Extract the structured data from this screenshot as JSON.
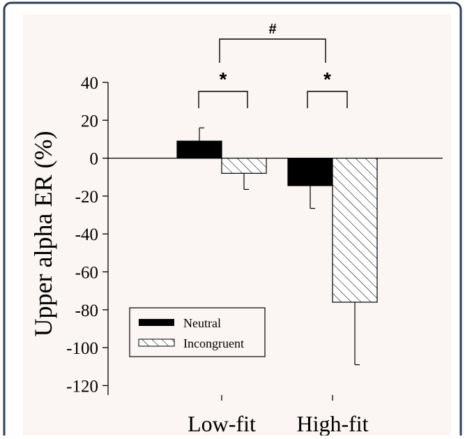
{
  "colors": {
    "panel_border": "#2f3f59",
    "plot_background": "#fbf5f3",
    "neutral_fill": "#000000",
    "incongruent_fill": "#ffffff",
    "hatch": "#000000"
  },
  "chart_data": {
    "type": "bar",
    "title": "",
    "xlabel": "",
    "ylabel": "Upper alpha ER (%)",
    "categories": [
      "Low-fit",
      "High-fit"
    ],
    "series": [
      {
        "name": "Neutral",
        "values": [
          9,
          -14.5
        ],
        "error": [
          7,
          12
        ],
        "pattern": "solid-black"
      },
      {
        "name": "Incongruent",
        "values": [
          -8,
          -76
        ],
        "error": [
          8.5,
          33
        ],
        "pattern": "diagonal-hatch"
      }
    ],
    "ylim": [
      -125,
      40
    ],
    "yticks": [
      40,
      20,
      0,
      -20,
      -40,
      -60,
      -80,
      -100,
      -120
    ],
    "ytick_labels": [
      "40",
      "20",
      "0",
      "-20",
      "-40",
      "-60",
      "-80",
      "-100",
      "-120"
    ],
    "grid": false,
    "legend_position": "bottom-left",
    "significance": [
      {
        "label": "*",
        "between": "Neutral vs Incongruent",
        "category": "Low-fit"
      },
      {
        "label": "*",
        "between": "Neutral vs Incongruent",
        "category": "High-fit"
      },
      {
        "label": "#",
        "between": "Low-fit vs High-fit"
      }
    ]
  }
}
